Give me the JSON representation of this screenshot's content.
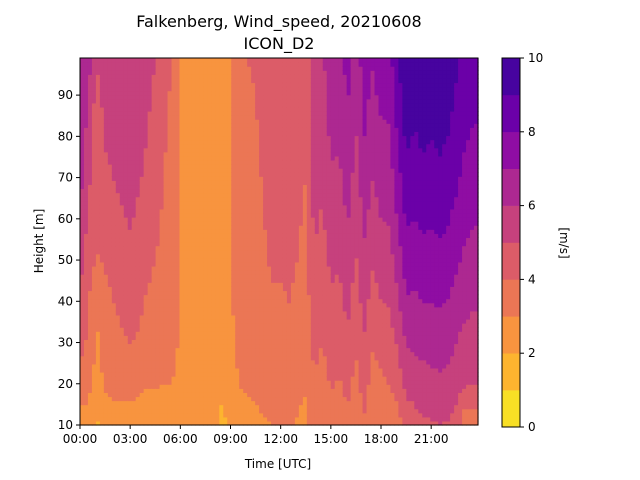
{
  "chart_data": {
    "type": "heatmap",
    "chart_style": "filled contour",
    "title_line1": "Falkenberg, Wind_speed, 20210608",
    "title_line2": "ICON_D2",
    "xlabel": "Time [UTC]",
    "ylabel": "Height [m]",
    "xlim": [
      0,
      23.8
    ],
    "ylim": [
      10,
      99
    ],
    "x_ticks": [
      0,
      3,
      6,
      9,
      12,
      15,
      18,
      21
    ],
    "x_tick_labels": [
      "00:00",
      "03:00",
      "06:00",
      "09:00",
      "12:00",
      "15:00",
      "18:00",
      "21:00"
    ],
    "y_ticks": [
      10,
      20,
      30,
      40,
      50,
      60,
      70,
      80,
      90
    ],
    "y_tick_labels": [
      "10",
      "20",
      "30",
      "40",
      "50",
      "60",
      "70",
      "80",
      "90"
    ],
    "colorbar": {
      "label": "[m/s]",
      "levels": [
        0,
        1,
        2,
        3,
        4,
        5,
        6,
        7,
        8,
        9,
        10
      ],
      "tick_values": [
        0,
        2,
        4,
        6,
        8,
        10
      ],
      "tick_labels": [
        "0",
        "2",
        "4",
        "6",
        "8",
        "10"
      ],
      "colors": [
        "#f8df25",
        "#fdb42f",
        "#f8943f",
        "#eb7655",
        "#dc5c68",
        "#c6417d",
        "#ad2891",
        "#8f0da3",
        "#6b00a8",
        "#47039f"
      ]
    },
    "heights": [
      10,
      20,
      30,
      40,
      50,
      60,
      70,
      80,
      90,
      99
    ],
    "columns": [
      {
        "t": 0.0,
        "speed": [
          2.4,
          3.6,
          4.4,
          4.9,
          5.4,
          6.0,
          6.4,
          6.7,
          7.0,
          7.2
        ]
      },
      {
        "t": 0.5,
        "speed": [
          2.6,
          3.3,
          3.8,
          4.1,
          4.4,
          4.8,
          5.2,
          5.6,
          6.0,
          6.4
        ]
      },
      {
        "t": 1.0,
        "speed": [
          1.8,
          2.6,
          2.9,
          3.0,
          3.9,
          4.3,
          4.4,
          4.2,
          4.6,
          5.2
        ]
      },
      {
        "t": 1.5,
        "speed": [
          2.4,
          3.1,
          3.4,
          3.7,
          4.1,
          4.5,
          4.8,
          5.1,
          5.4,
          5.7
        ]
      },
      {
        "t": 2.0,
        "speed": [
          2.5,
          3.3,
          3.7,
          4.0,
          4.3,
          4.7,
          5.0,
          5.3,
          5.6,
          5.9
        ]
      },
      {
        "t": 2.5,
        "speed": [
          2.5,
          3.4,
          3.9,
          4.2,
          4.6,
          4.9,
          5.2,
          5.5,
          5.7,
          5.9
        ]
      },
      {
        "t": 3.0,
        "speed": [
          2.4,
          3.5,
          4.0,
          4.4,
          4.8,
          5.1,
          5.4,
          5.6,
          5.8,
          6.0
        ]
      },
      {
        "t": 3.5,
        "speed": [
          2.3,
          3.3,
          3.9,
          4.2,
          4.5,
          4.8,
          5.1,
          5.4,
          5.6,
          5.8
        ]
      },
      {
        "t": 4.0,
        "speed": [
          2.3,
          3.1,
          3.6,
          3.9,
          4.2,
          4.5,
          4.8,
          5.0,
          5.2,
          5.4
        ]
      },
      {
        "t": 4.5,
        "speed": [
          2.4,
          3.1,
          3.5,
          3.8,
          4.0,
          4.2,
          4.4,
          4.6,
          4.8,
          5.0
        ]
      },
      {
        "t": 5.0,
        "speed": [
          2.4,
          3.0,
          3.4,
          3.6,
          3.8,
          3.9,
          4.0,
          4.1,
          4.2,
          4.3
        ]
      },
      {
        "t": 5.5,
        "speed": [
          2.5,
          3.0,
          3.3,
          3.5,
          3.6,
          3.7,
          3.8,
          3.8,
          3.9,
          4.0
        ]
      },
      {
        "t": 6.0,
        "speed": [
          2.4,
          2.7,
          2.9,
          2.9,
          2.9,
          2.9,
          2.9,
          2.9,
          2.9,
          2.9
        ]
      },
      {
        "t": 6.5,
        "speed": [
          2.3,
          2.6,
          2.7,
          2.8,
          2.8,
          2.8,
          2.8,
          2.8,
          2.8,
          2.8
        ]
      },
      {
        "t": 7.0,
        "speed": [
          2.2,
          2.5,
          2.6,
          2.7,
          2.7,
          2.7,
          2.7,
          2.7,
          2.7,
          2.7
        ]
      },
      {
        "t": 7.5,
        "speed": [
          2.3,
          2.5,
          2.6,
          2.7,
          2.7,
          2.7,
          2.7,
          2.7,
          2.7,
          2.7
        ]
      },
      {
        "t": 8.0,
        "speed": [
          2.2,
          2.4,
          2.5,
          2.6,
          2.6,
          2.6,
          2.6,
          2.6,
          2.6,
          2.6
        ]
      },
      {
        "t": 8.5,
        "speed": [
          1.7,
          2.3,
          2.5,
          2.6,
          2.6,
          2.6,
          2.6,
          2.6,
          2.6,
          2.6
        ]
      },
      {
        "t": 9.0,
        "speed": [
          2.3,
          2.6,
          2.8,
          2.9,
          2.9,
          2.9,
          2.9,
          2.9,
          2.9,
          2.9
        ]
      },
      {
        "t": 9.5,
        "speed": [
          2.6,
          3.0,
          3.2,
          3.3,
          3.4,
          3.5,
          3.6,
          3.7,
          3.8,
          3.9
        ]
      },
      {
        "t": 10.0,
        "speed": [
          2.7,
          3.1,
          3.3,
          3.4,
          3.5,
          3.6,
          3.7,
          3.8,
          3.9,
          4.0
        ]
      },
      {
        "t": 10.5,
        "speed": [
          2.8,
          3.2,
          3.4,
          3.5,
          3.6,
          3.7,
          3.8,
          3.9,
          4.0,
          4.1
        ]
      },
      {
        "t": 11.0,
        "speed": [
          2.9,
          3.3,
          3.6,
          3.8,
          3.9,
          4.0,
          4.1,
          4.2,
          4.3,
          4.4
        ]
      },
      {
        "t": 11.5,
        "speed": [
          3.0,
          3.4,
          3.7,
          3.9,
          4.1,
          4.2,
          4.3,
          4.4,
          4.5,
          4.6
        ]
      },
      {
        "t": 12.0,
        "speed": [
          3.0,
          3.4,
          3.7,
          3.9,
          4.1,
          4.2,
          4.3,
          4.4,
          4.5,
          4.6
        ]
      },
      {
        "t": 12.5,
        "speed": [
          3.1,
          3.5,
          3.8,
          4.0,
          4.2,
          4.3,
          4.4,
          4.5,
          4.6,
          4.7
        ]
      },
      {
        "t": 13.0,
        "speed": [
          2.9,
          3.3,
          3.6,
          3.8,
          4.0,
          4.1,
          4.2,
          4.3,
          4.4,
          4.5
        ]
      },
      {
        "t": 13.5,
        "speed": [
          2.7,
          3.1,
          3.4,
          3.6,
          3.7,
          3.9,
          4.0,
          4.1,
          4.2,
          4.3
        ]
      },
      {
        "t": 14.0,
        "speed": [
          3.5,
          3.9,
          4.3,
          4.6,
          4.9,
          5.2,
          5.4,
          5.6,
          5.8,
          6.0
        ]
      },
      {
        "t": 14.5,
        "speed": [
          3.2,
          3.6,
          4.0,
          4.3,
          4.6,
          4.9,
          5.1,
          5.4,
          5.6,
          5.8
        ]
      },
      {
        "t": 15.0,
        "speed": [
          3.6,
          4.1,
          4.5,
          4.9,
          5.2,
          5.6,
          5.9,
          6.2,
          6.5,
          6.8
        ]
      },
      {
        "t": 15.5,
        "speed": [
          3.4,
          3.9,
          4.3,
          4.7,
          5.1,
          5.4,
          5.8,
          6.1,
          6.4,
          6.6
        ]
      },
      {
        "t": 16.0,
        "speed": [
          3.8,
          4.3,
          4.8,
          5.3,
          5.7,
          6.1,
          6.5,
          6.8,
          7.1,
          7.4
        ]
      },
      {
        "t": 16.5,
        "speed": [
          3.2,
          3.7,
          4.1,
          4.5,
          4.9,
          5.3,
          5.6,
          5.9,
          6.2,
          6.4
        ]
      },
      {
        "t": 17.0,
        "speed": [
          3.9,
          4.4,
          4.9,
          5.4,
          5.8,
          6.2,
          6.6,
          7.0,
          7.3,
          7.6
        ]
      },
      {
        "t": 17.5,
        "speed": [
          3.0,
          3.6,
          4.1,
          4.6,
          5.1,
          5.6,
          6.0,
          6.4,
          6.8,
          7.1
        ]
      },
      {
        "t": 18.0,
        "speed": [
          3.1,
          3.8,
          4.4,
          5.0,
          5.5,
          6.0,
          6.4,
          6.8,
          7.2,
          7.5
        ]
      },
      {
        "t": 18.5,
        "speed": [
          3.4,
          4.0,
          4.6,
          5.1,
          5.6,
          6.1,
          6.5,
          6.9,
          7.3,
          7.6
        ]
      },
      {
        "t": 19.0,
        "speed": [
          3.6,
          4.4,
          5.1,
          5.8,
          6.5,
          7.1,
          7.6,
          8.1,
          8.5,
          8.9
        ]
      },
      {
        "t": 19.5,
        "speed": [
          4.4,
          5.3,
          6.1,
          6.9,
          7.5,
          8.1,
          8.7,
          9.2,
          9.6,
          10.0
        ]
      },
      {
        "t": 20.0,
        "speed": [
          4.6,
          5.4,
          6.2,
          6.8,
          7.4,
          8.0,
          8.5,
          8.9,
          9.3,
          9.6
        ]
      },
      {
        "t": 20.5,
        "speed": [
          4.8,
          5.6,
          6.3,
          7.0,
          7.6,
          8.2,
          8.7,
          9.2,
          9.6,
          10.0
        ]
      },
      {
        "t": 21.0,
        "speed": [
          4.9,
          5.7,
          6.4,
          7.0,
          7.6,
          8.1,
          8.6,
          9.0,
          9.4,
          9.8
        ]
      },
      {
        "t": 21.5,
        "speed": [
          5.0,
          5.8,
          6.5,
          7.1,
          7.7,
          8.3,
          8.8,
          9.2,
          9.6,
          10.0
        ]
      },
      {
        "t": 22.0,
        "speed": [
          4.9,
          5.7,
          6.4,
          7.0,
          7.6,
          8.1,
          8.6,
          9.0,
          9.4,
          9.8
        ]
      },
      {
        "t": 22.5,
        "speed": [
          4.6,
          5.4,
          6.0,
          6.6,
          7.2,
          7.7,
          8.2,
          8.6,
          8.9,
          9.2
        ]
      },
      {
        "t": 23.0,
        "speed": [
          3.2,
          5.1,
          5.7,
          6.3,
          6.8,
          7.3,
          7.7,
          8.1,
          8.4,
          8.7
        ]
      },
      {
        "t": 23.5,
        "speed": [
          3.3,
          5.0,
          5.6,
          6.1,
          6.6,
          7.1,
          7.5,
          7.9,
          8.2,
          8.5
        ]
      }
    ]
  }
}
